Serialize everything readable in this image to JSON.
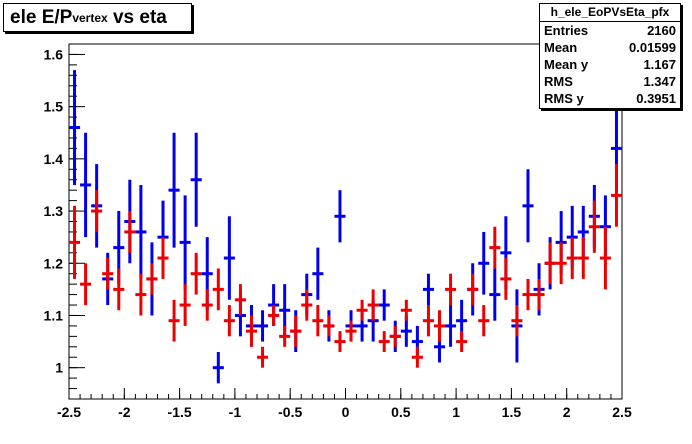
{
  "chart_data": {
    "type": "scatter",
    "title_main": "ele E/P",
    "title_sub": "vertex",
    "title_tail": " vs eta",
    "xlim": [
      -2.5,
      2.5
    ],
    "ylim": [
      0.94,
      1.62
    ],
    "x_ticks": [
      "-2.5",
      "-2",
      "-1.5",
      "-1",
      "-0.5",
      "0",
      "0.5",
      "1",
      "1.5",
      "2",
      "2.5"
    ],
    "y_ticks": [
      "1",
      "1.1",
      "1.2",
      "1.3",
      "1.4",
      "1.5",
      "1.6"
    ],
    "grid": false,
    "legend": "none",
    "colors": {
      "blue": "#0000ee",
      "red": "#ee0000"
    },
    "series": [
      {
        "color": "blue",
        "x": [
          -2.45,
          -2.35,
          -2.25,
          -2.15,
          -2.05,
          -1.95,
          -1.85,
          -1.75,
          -1.65,
          -1.55,
          -1.45,
          -1.35,
          -1.25,
          -1.15,
          -1.05,
          -0.95,
          -0.85,
          -0.75,
          -0.65,
          -0.55,
          -0.45,
          -0.35,
          -0.25,
          -0.15,
          -0.05,
          0.05,
          0.15,
          0.25,
          0.35,
          0.45,
          0.55,
          0.65,
          0.75,
          0.85,
          0.95,
          1.05,
          1.15,
          1.25,
          1.35,
          1.45,
          1.55,
          1.65,
          1.75,
          1.85,
          1.95,
          2.05,
          2.15,
          2.25,
          2.35,
          2.45
        ],
        "y": [
          1.46,
          1.35,
          1.31,
          1.17,
          1.23,
          1.28,
          1.26,
          1.17,
          1.25,
          1.34,
          1.24,
          1.36,
          1.18,
          1.0,
          1.21,
          1.1,
          1.08,
          1.08,
          1.12,
          1.11,
          1.07,
          1.14,
          1.18,
          1.08,
          1.29,
          1.08,
          1.08,
          1.09,
          1.12,
          1.06,
          1.07,
          1.05,
          1.15,
          1.04,
          1.08,
          1.09,
          1.15,
          1.2,
          1.14,
          1.22,
          1.08,
          1.31,
          1.15,
          1.2,
          1.24,
          1.25,
          1.26,
          1.29,
          1.27,
          1.42
        ],
        "yerr": [
          0.11,
          0.1,
          0.08,
          0.05,
          0.07,
          0.08,
          0.09,
          0.07,
          0.07,
          0.11,
          0.09,
          0.09,
          0.07,
          0.03,
          0.08,
          0.04,
          0.04,
          0.03,
          0.04,
          0.05,
          0.04,
          0.04,
          0.05,
          0.03,
          0.05,
          0.03,
          0.03,
          0.04,
          0.03,
          0.03,
          0.03,
          0.03,
          0.03,
          0.03,
          0.04,
          0.04,
          0.05,
          0.06,
          0.05,
          0.07,
          0.07,
          0.07,
          0.05,
          0.05,
          0.06,
          0.06,
          0.05,
          0.06,
          0.06,
          0.08
        ]
      },
      {
        "color": "red",
        "x": [
          -2.45,
          -2.35,
          -2.25,
          -2.15,
          -2.05,
          -1.95,
          -1.85,
          -1.75,
          -1.65,
          -1.55,
          -1.45,
          -1.35,
          -1.25,
          -1.15,
          -1.05,
          -0.95,
          -0.85,
          -0.75,
          -0.65,
          -0.55,
          -0.45,
          -0.35,
          -0.25,
          -0.15,
          -0.05,
          0.05,
          0.15,
          0.25,
          0.35,
          0.45,
          0.55,
          0.65,
          0.75,
          0.85,
          0.95,
          1.05,
          1.15,
          1.25,
          1.35,
          1.45,
          1.55,
          1.65,
          1.75,
          1.85,
          1.95,
          2.05,
          2.15,
          2.25,
          2.35,
          2.45
        ],
        "y": [
          1.24,
          1.16,
          1.3,
          1.18,
          1.15,
          1.26,
          1.14,
          1.17,
          1.21,
          1.09,
          1.12,
          1.18,
          1.12,
          1.15,
          1.09,
          1.13,
          1.07,
          1.02,
          1.1,
          1.06,
          1.07,
          1.12,
          1.09,
          1.08,
          1.05,
          1.07,
          1.11,
          1.12,
          1.05,
          1.06,
          1.11,
          1.02,
          1.09,
          1.08,
          1.15,
          1.05,
          1.15,
          1.09,
          1.23,
          1.17,
          1.09,
          1.14,
          1.14,
          1.2,
          1.2,
          1.21,
          1.21,
          1.27,
          1.21,
          1.33
        ],
        "yerr": [
          0.07,
          0.04,
          0.04,
          0.03,
          0.04,
          0.04,
          0.04,
          0.03,
          0.04,
          0.04,
          0.04,
          0.04,
          0.03,
          0.04,
          0.03,
          0.03,
          0.03,
          0.02,
          0.02,
          0.02,
          0.03,
          0.03,
          0.03,
          0.02,
          0.02,
          0.02,
          0.02,
          0.03,
          0.02,
          0.02,
          0.02,
          0.02,
          0.03,
          0.03,
          0.03,
          0.02,
          0.03,
          0.03,
          0.04,
          0.04,
          0.03,
          0.03,
          0.03,
          0.04,
          0.04,
          0.04,
          0.04,
          0.05,
          0.06,
          0.06
        ]
      }
    ]
  },
  "stats": {
    "name": "h_ele_EoPVsEta_pfx",
    "rows": [
      {
        "label": "Entries",
        "value": "2160"
      },
      {
        "label": "Mean",
        "value": "0.01599"
      },
      {
        "label": "Mean y",
        "value": "1.167"
      },
      {
        "label": "RMS",
        "value": "1.347"
      },
      {
        "label": "RMS y",
        "value": "0.3951"
      }
    ]
  }
}
